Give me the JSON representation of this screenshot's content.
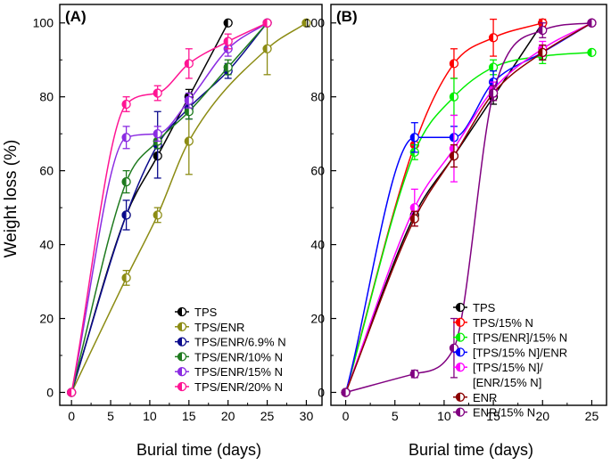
{
  "figure": {
    "ylabel": "Weight loss (%)",
    "xlabel": "Burial time (days)"
  },
  "chart_data": [
    {
      "type": "line",
      "panel_label": "(A)",
      "xlabel": "Burial time (days)",
      "ylabel": "Weight loss (%)",
      "xlim": [
        -1.5,
        32
      ],
      "ylim": [
        -3.5,
        105
      ],
      "xticks": [
        "0",
        "5",
        "10",
        "15",
        "20",
        "25",
        "30"
      ],
      "yticks": [
        "0",
        "20",
        "40",
        "60",
        "80",
        "100"
      ],
      "legend_position": "bottom-right",
      "series": [
        {
          "name": "TPS",
          "color": "#000000",
          "x": [
            0,
            7,
            11,
            15,
            20
          ],
          "y": [
            0,
            48,
            64,
            80,
            100
          ],
          "err": [
            0,
            0,
            0,
            2,
            0
          ]
        },
        {
          "name": "TPS/ENR",
          "color": "#8c8c14",
          "x": [
            0,
            7,
            11,
            15,
            25,
            30
          ],
          "y": [
            0,
            31,
            48,
            68,
            93,
            100
          ],
          "err": [
            0,
            2,
            2,
            9,
            7,
            0
          ]
        },
        {
          "name": "TPS/ENR/6.9% N",
          "color": "#0a0a8c",
          "x": [
            0,
            7,
            11,
            15,
            20,
            25
          ],
          "y": [
            0,
            48,
            67,
            77,
            87,
            100
          ],
          "err": [
            0,
            4,
            9,
            3,
            2,
            0
          ]
        },
        {
          "name": "TPS/ENR/10% N",
          "color": "#1e7a1e",
          "x": [
            0,
            7,
            11,
            15,
            20,
            25
          ],
          "y": [
            0,
            57,
            68,
            76,
            88,
            100
          ],
          "err": [
            0,
            3,
            2,
            2,
            2,
            0
          ]
        },
        {
          "name": "TPS/ENR/15% N",
          "color": "#8a2be2",
          "x": [
            0,
            7,
            11,
            15,
            20,
            25
          ],
          "y": [
            0,
            69,
            70,
            79,
            93,
            100
          ],
          "err": [
            0,
            3,
            2,
            2,
            2,
            0
          ]
        },
        {
          "name": "TPS/ENR/20% N",
          "color": "#ff1493",
          "x": [
            0,
            7,
            11,
            15,
            20,
            25
          ],
          "y": [
            0,
            78,
            81,
            89,
            95,
            100
          ],
          "err": [
            0,
            2,
            2,
            4,
            2,
            0
          ]
        }
      ]
    },
    {
      "type": "line",
      "panel_label": "(B)",
      "xlabel": "Burial time (days)",
      "ylabel": "Weight loss (%)",
      "xlim": [
        -1.5,
        26.5
      ],
      "ylim": [
        -3.5,
        105
      ],
      "xticks": [
        "0",
        "5",
        "10",
        "15",
        "20",
        "25"
      ],
      "yticks": [
        "0",
        "20",
        "40",
        "60",
        "80",
        "100"
      ],
      "legend_position": "bottom-right",
      "series": [
        {
          "name": "TPS",
          "color": "#000000",
          "x": [
            0,
            7,
            11,
            15,
            20
          ],
          "y": [
            0,
            48,
            64,
            80,
            100
          ],
          "err": [
            0,
            0,
            0,
            2,
            0
          ]
        },
        {
          "name": "TPS/15% N",
          "color": "#ff0000",
          "x": [
            0,
            7,
            11,
            15,
            20
          ],
          "y": [
            0,
            67,
            89,
            96,
            100
          ],
          "err": [
            0,
            2,
            4,
            5,
            1
          ]
        },
        {
          "name": "[TPS/ENR]/15% N",
          "color": "#00ee00",
          "x": [
            0,
            7,
            11,
            15,
            20,
            25
          ],
          "y": [
            0,
            65,
            80,
            88,
            91,
            92
          ],
          "err": [
            0,
            2,
            5,
            2,
            2,
            0
          ]
        },
        {
          "name": "[TPS/15% N]/ENR",
          "color": "#0000ff",
          "x": [
            0,
            7,
            11,
            15,
            20,
            25
          ],
          "y": [
            0,
            69,
            69,
            84,
            92,
            100
          ],
          "err": [
            0,
            4,
            3,
            3,
            2,
            0
          ]
        },
        {
          "name": "[TPS/15% N]/ [ENR/15% N]",
          "color": "#ff00ff",
          "x": [
            0,
            7,
            11,
            15,
            20,
            25
          ],
          "y": [
            0,
            50,
            66,
            82,
            93,
            100
          ],
          "err": [
            0,
            5,
            9,
            2,
            2,
            0
          ]
        },
        {
          "name": "ENR",
          "color": "#8b0000",
          "x": [
            0,
            7,
            11,
            15,
            20,
            25
          ],
          "y": [
            0,
            47,
            64,
            81,
            92,
            100
          ],
          "err": [
            0,
            2,
            3,
            2,
            2,
            0
          ]
        },
        {
          "name": "ENR/15% N",
          "color": "#800080",
          "x": [
            0,
            7,
            11,
            15,
            20,
            25
          ],
          "y": [
            0,
            5,
            12,
            81,
            98,
            100
          ],
          "err": [
            0,
            1,
            8,
            2,
            2,
            0
          ]
        }
      ]
    }
  ]
}
